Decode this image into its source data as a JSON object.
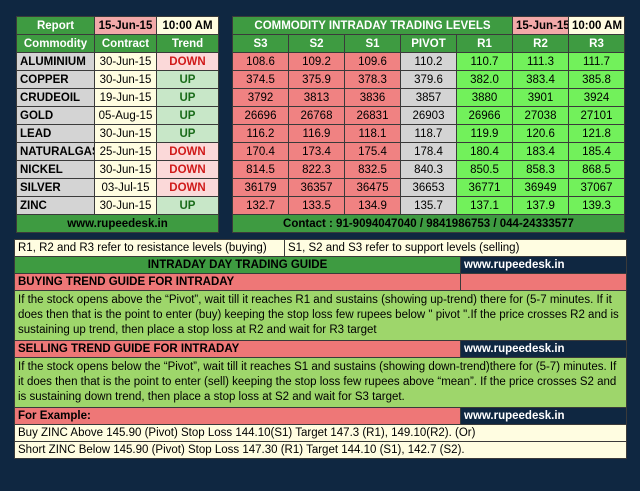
{
  "left_table": {
    "report_label": "Report",
    "date": "15-Jun-15",
    "time": "10:00 AM",
    "headers": [
      "Commodity",
      "Contract",
      "Trend"
    ],
    "rows": [
      {
        "name": "ALUMINIUM",
        "contract": "30-Jun-15",
        "trend": "DOWN"
      },
      {
        "name": "COPPER",
        "contract": "30-Jun-15",
        "trend": "UP"
      },
      {
        "name": "CRUDEOIL",
        "contract": "19-Jun-15",
        "trend": "UP"
      },
      {
        "name": "GOLD",
        "contract": "05-Aug-15",
        "trend": "UP"
      },
      {
        "name": "LEAD",
        "contract": "30-Jun-15",
        "trend": "UP"
      },
      {
        "name": "NATURALGAS",
        "contract": "25-Jun-15",
        "trend": "DOWN"
      },
      {
        "name": "NICKEL",
        "contract": "30-Jun-15",
        "trend": "DOWN"
      },
      {
        "name": "SILVER",
        "contract": "03-Jul-15",
        "trend": "DOWN"
      },
      {
        "name": "ZINC",
        "contract": "30-Jun-15",
        "trend": "UP"
      }
    ],
    "website": "www.rupeedesk.in"
  },
  "right_table": {
    "title": "COMMODITY INTRADAY TRADING LEVELS",
    "date": "15-Jun-15",
    "time": "10:00 AM",
    "headers": [
      "S3",
      "S2",
      "S1",
      "PIVOT",
      "R1",
      "R2",
      "R3"
    ],
    "rows": [
      [
        "108.6",
        "109.2",
        "109.6",
        "110.2",
        "110.7",
        "111.3",
        "111.7"
      ],
      [
        "374.5",
        "375.9",
        "378.3",
        "379.6",
        "382.0",
        "383.4",
        "385.8"
      ],
      [
        "3792",
        "3813",
        "3836",
        "3857",
        "3880",
        "3901",
        "3924"
      ],
      [
        "26696",
        "26768",
        "26831",
        "26903",
        "26966",
        "27038",
        "27101"
      ],
      [
        "116.2",
        "116.9",
        "118.1",
        "118.7",
        "119.9",
        "120.6",
        "121.8"
      ],
      [
        "170.4",
        "173.4",
        "175.4",
        "178.4",
        "180.4",
        "183.4",
        "185.4"
      ],
      [
        "814.5",
        "822.3",
        "832.5",
        "840.3",
        "850.5",
        "858.3",
        "868.5"
      ],
      [
        "36179",
        "36357",
        "36475",
        "36653",
        "36771",
        "36949",
        "37067"
      ],
      [
        "132.7",
        "133.5",
        "134.9",
        "135.7",
        "137.1",
        "137.9",
        "139.3"
      ]
    ],
    "contact": "Contact : 91-9094047040 / 9841986753 / 044-24333577"
  },
  "guide": {
    "resistance_note": "R1, R2 and R3 refer to resistance levels (buying)",
    "support_note": "S1, S2 and S3 refer to support levels (selling)",
    "title": "INTRADAY DAY TRADING GUIDE",
    "website": "www.rupeedesk.in",
    "buying_title": "BUYING TREND GUIDE FOR INTRADAY",
    "buying_text": "If the stock opens above the “Pivot”, wait till it reaches R1 and sustains (showing up-trend) there for (5-7 minutes. If it does then that is the point to enter (buy) keeping the stop loss few rupees below \" pivot \".If the price crosses R2 and is sustaining up trend, then place a stop loss at R2 and wait for R3 target",
    "selling_title": "SELLING TREND GUIDE FOR INTRADAY",
    "selling_text": "If the stock opens below the “Pivot”, wait till it reaches S1 and sustains (showing down-trend)there for (5-7) minutes. If it does then that is the point to enter (sell) keeping the stop loss few rupees above “mean”.  If the price crosses S2 and is sustaining down trend, then place a stop loss at S2 and wait for S3 target.",
    "example_title": "For Example:",
    "example_buy": "Buy ZINC Above 145.90 (Pivot) Stop Loss 144.10(S1) Target 147.3 (R1), 149.10(R2). (Or)",
    "example_sell": "Short ZINC Below 145.90 (Pivot) Stop Loss 147.30 (R1) Target 144.10 (S1), 142.7 (S2)."
  }
}
